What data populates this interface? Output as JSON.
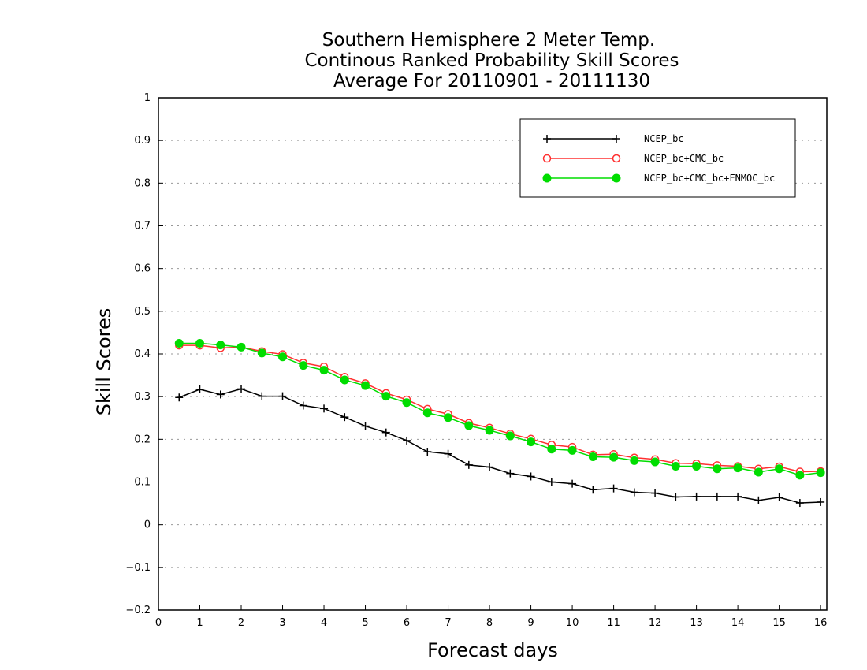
{
  "chart_data": {
    "type": "line",
    "title_lines": [
      "Southern Hemisphere 2 Meter Temp.",
      "Continous Ranked Probability Skill Scores",
      "Average For 20110901 - 20111130"
    ],
    "xlabel": "Forecast days",
    "ylabel": "Skill Scores",
    "xlim": [
      0,
      16.15
    ],
    "ylim": [
      -0.2,
      1
    ],
    "x_ticks": [
      0,
      1,
      2,
      3,
      4,
      5,
      6,
      7,
      8,
      9,
      10,
      11,
      12,
      13,
      14,
      15,
      16
    ],
    "y_ticks": [
      -0.2,
      -0.1,
      0,
      0.1,
      0.2,
      0.3,
      0.4,
      0.5,
      0.6,
      0.7,
      0.8,
      0.9,
      1
    ],
    "y_tick_labels": [
      "−0.2",
      "−0.1",
      "0",
      "0.1",
      "0.2",
      "0.3",
      "0.4",
      "0.5",
      "0.6",
      "0.7",
      "0.8",
      "0.9",
      "1"
    ],
    "grid": "horizontal dotted",
    "legend_position": "top-right",
    "x": [
      0.5,
      1,
      1.5,
      2,
      2.5,
      3,
      3.5,
      4,
      4.5,
      5,
      5.5,
      6,
      6.5,
      7,
      7.5,
      8,
      8.5,
      9,
      9.5,
      10,
      10.5,
      11,
      11.5,
      12,
      12.5,
      13,
      13.5,
      14,
      14.5,
      15,
      15.5,
      16
    ],
    "series": [
      {
        "name": "NCEP_bc",
        "color": "#000000",
        "marker": "plus",
        "values": [
          0.298,
          0.317,
          0.305,
          0.318,
          0.301,
          0.301,
          0.279,
          0.272,
          0.252,
          0.231,
          0.216,
          0.197,
          0.171,
          0.166,
          0.14,
          0.135,
          0.12,
          0.113,
          0.1,
          0.096,
          0.082,
          0.085,
          0.076,
          0.074,
          0.065,
          0.066,
          0.066,
          0.066,
          0.057,
          0.064,
          0.051,
          0.053
        ]
      },
      {
        "name": "NCEP_bc+CMC_bc",
        "color": "#ff3030",
        "marker": "open-circle",
        "values": [
          0.42,
          0.42,
          0.414,
          0.416,
          0.406,
          0.399,
          0.379,
          0.37,
          0.346,
          0.331,
          0.308,
          0.293,
          0.271,
          0.259,
          0.238,
          0.227,
          0.213,
          0.201,
          0.187,
          0.182,
          0.164,
          0.165,
          0.157,
          0.153,
          0.144,
          0.143,
          0.139,
          0.137,
          0.131,
          0.136,
          0.124,
          0.125
        ]
      },
      {
        "name": "NCEP_bc+CMC_bc+FNMOC_bc",
        "color": "#00dd00",
        "marker": "filled-circle",
        "values": [
          0.425,
          0.425,
          0.421,
          0.416,
          0.402,
          0.393,
          0.373,
          0.362,
          0.339,
          0.326,
          0.301,
          0.286,
          0.262,
          0.251,
          0.232,
          0.221,
          0.208,
          0.194,
          0.177,
          0.174,
          0.159,
          0.158,
          0.15,
          0.147,
          0.137,
          0.137,
          0.131,
          0.133,
          0.123,
          0.131,
          0.116,
          0.122
        ]
      }
    ]
  }
}
